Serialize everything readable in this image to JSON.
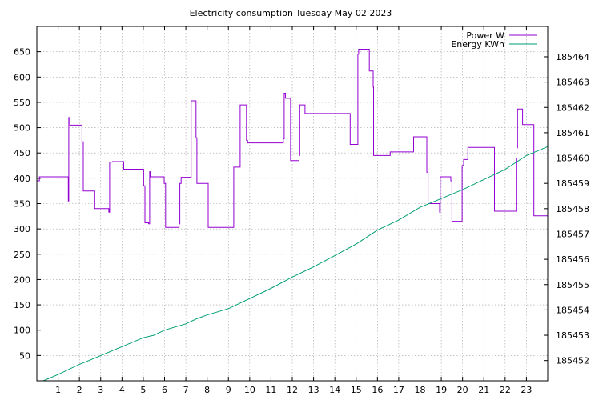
{
  "chart_data": {
    "type": "line",
    "title": "Electricity consumption Tuesday May 02 2023",
    "xlim": [
      0,
      24
    ],
    "x_ticks": [
      "1",
      "2",
      "3",
      "4",
      "5",
      "6",
      "7",
      "8",
      "9",
      "10",
      "11",
      "12",
      "13",
      "14",
      "15",
      "16",
      "17",
      "18",
      "19",
      "20",
      "21",
      "22",
      "23"
    ],
    "y_left": {
      "lim": [
        0,
        700
      ],
      "ticks": [
        "50",
        "100",
        "150",
        "200",
        "250",
        "300",
        "350",
        "400",
        "450",
        "500",
        "550",
        "600",
        "650"
      ]
    },
    "y_right": {
      "lim": [
        185451.2,
        185465.2
      ],
      "ticks": [
        "185452",
        "185453",
        "185454",
        "185455",
        "185456",
        "185457",
        "185458",
        "185459",
        "185460",
        "185461",
        "185462",
        "185463",
        "185464"
      ]
    },
    "grid": true,
    "legend_position": "top-right",
    "series": [
      {
        "name": "Power W",
        "axis": "left",
        "color": "#9400d3",
        "step": true,
        "points": [
          [
            0,
            395
          ],
          [
            0.12,
            403
          ],
          [
            1.45,
            403
          ],
          [
            1.48,
            355
          ],
          [
            1.5,
            520
          ],
          [
            1.55,
            505
          ],
          [
            2.1,
            505
          ],
          [
            2.12,
            472
          ],
          [
            2.18,
            375
          ],
          [
            2.7,
            375
          ],
          [
            2.72,
            340
          ],
          [
            3.35,
            340
          ],
          [
            3.38,
            333
          ],
          [
            3.42,
            432
          ],
          [
            3.55,
            433
          ],
          [
            4.05,
            433
          ],
          [
            4.08,
            418
          ],
          [
            5.0,
            418
          ],
          [
            5.02,
            385
          ],
          [
            5.08,
            312
          ],
          [
            5.25,
            310
          ],
          [
            5.3,
            413
          ],
          [
            5.33,
            403
          ],
          [
            5.95,
            403
          ],
          [
            5.98,
            390
          ],
          [
            6.05,
            303
          ],
          [
            6.65,
            303
          ],
          [
            6.68,
            310
          ],
          [
            6.72,
            390
          ],
          [
            6.78,
            402
          ],
          [
            7.2,
            402
          ],
          [
            7.25,
            553
          ],
          [
            7.45,
            553
          ],
          [
            7.48,
            480
          ],
          [
            7.52,
            390
          ],
          [
            8.0,
            390
          ],
          [
            8.05,
            303
          ],
          [
            9.2,
            303
          ],
          [
            9.25,
            422
          ],
          [
            9.5,
            422
          ],
          [
            9.55,
            545
          ],
          [
            9.8,
            545
          ],
          [
            9.85,
            475
          ],
          [
            9.9,
            470
          ],
          [
            11.55,
            470
          ],
          [
            11.58,
            478
          ],
          [
            11.62,
            568
          ],
          [
            11.68,
            558
          ],
          [
            11.9,
            558
          ],
          [
            11.92,
            435
          ],
          [
            12.3,
            435
          ],
          [
            12.32,
            445
          ],
          [
            12.35,
            545
          ],
          [
            12.55,
            545
          ],
          [
            12.6,
            528
          ],
          [
            14.7,
            528
          ],
          [
            14.72,
            467
          ],
          [
            15.05,
            467
          ],
          [
            15.08,
            645
          ],
          [
            15.12,
            655
          ],
          [
            15.6,
            655
          ],
          [
            15.62,
            612
          ],
          [
            15.78,
            612
          ],
          [
            15.8,
            580
          ],
          [
            15.82,
            445
          ],
          [
            16.55,
            445
          ],
          [
            16.6,
            452
          ],
          [
            17.65,
            452
          ],
          [
            17.7,
            482
          ],
          [
            18.3,
            482
          ],
          [
            18.32,
            412
          ],
          [
            18.38,
            350
          ],
          [
            18.9,
            350
          ],
          [
            18.92,
            333
          ],
          [
            18.95,
            403
          ],
          [
            19.4,
            403
          ],
          [
            19.45,
            395
          ],
          [
            19.5,
            315
          ],
          [
            19.95,
            315
          ],
          [
            19.98,
            425
          ],
          [
            20.05,
            437
          ],
          [
            20.2,
            437
          ],
          [
            20.25,
            461
          ],
          [
            21.45,
            461
          ],
          [
            21.5,
            335
          ],
          [
            22.5,
            335
          ],
          [
            22.52,
            440
          ],
          [
            22.55,
            460
          ],
          [
            22.58,
            537
          ],
          [
            22.78,
            537
          ],
          [
            22.82,
            506
          ],
          [
            23.3,
            506
          ],
          [
            23.35,
            326
          ],
          [
            24,
            326
          ]
        ]
      },
      {
        "name": "Energy KWh",
        "axis": "right",
        "color": "#009e73",
        "step": false,
        "points": [
          [
            0.3,
            185451.2
          ],
          [
            1,
            185451.45
          ],
          [
            2,
            185451.85
          ],
          [
            2.3,
            185451.95
          ],
          [
            3,
            185452.2
          ],
          [
            4,
            185452.55
          ],
          [
            5,
            185452.9
          ],
          [
            5.5,
            185453.0
          ],
          [
            6,
            185453.2
          ],
          [
            7,
            185453.45
          ],
          [
            7.5,
            185453.65
          ],
          [
            8,
            185453.8
          ],
          [
            9,
            185454.05
          ],
          [
            10,
            185454.45
          ],
          [
            11,
            185454.85
          ],
          [
            12,
            185455.3
          ],
          [
            13,
            185455.7
          ],
          [
            14,
            185456.15
          ],
          [
            15,
            185456.6
          ],
          [
            16,
            185457.15
          ],
          [
            17,
            185457.55
          ],
          [
            18,
            185458.05
          ],
          [
            19,
            185458.4
          ],
          [
            20,
            185458.75
          ],
          [
            21,
            185459.15
          ],
          [
            22,
            185459.55
          ],
          [
            23,
            185460.1
          ],
          [
            24,
            185460.45
          ]
        ]
      }
    ]
  }
}
